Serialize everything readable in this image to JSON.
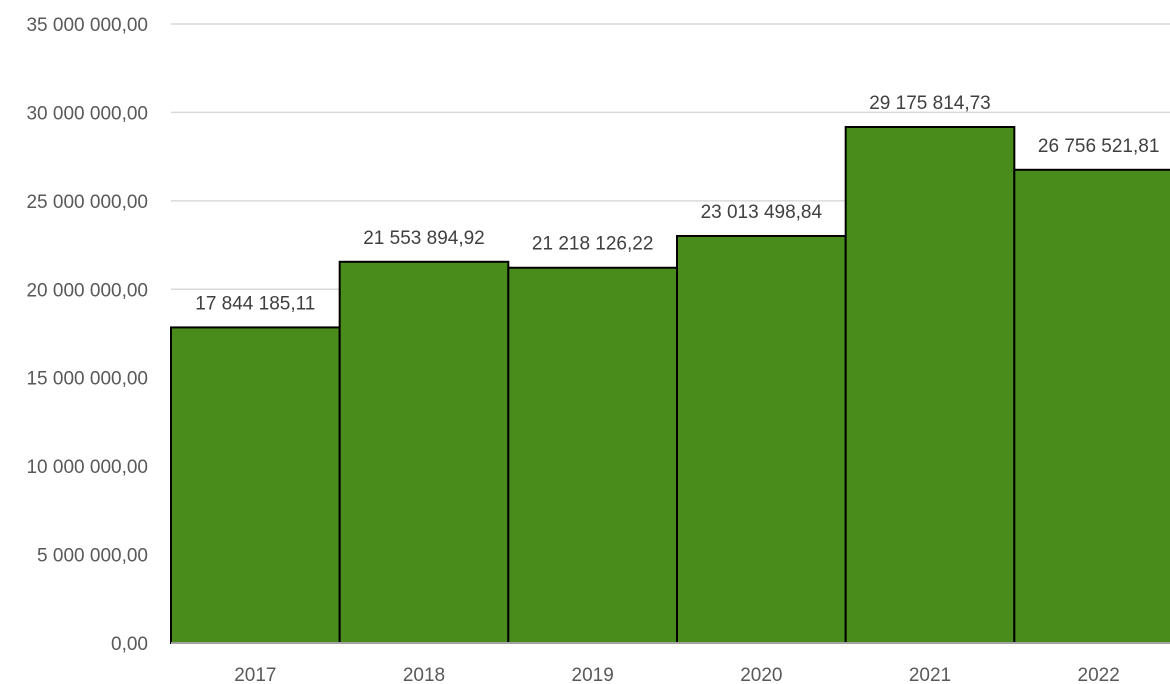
{
  "colors": {
    "bar_fill": "#4a8c1c",
    "bar_stroke": "#000000",
    "grid": "#d9d9d9",
    "text": "#595959"
  },
  "chart_data": {
    "type": "bar",
    "categories": [
      "2017",
      "2018",
      "2019",
      "2020",
      "2021",
      "2022"
    ],
    "values": [
      17844185.11,
      21553894.92,
      21218126.22,
      23013498.84,
      29175814.73,
      26756521.81
    ],
    "data_labels": [
      "17 844 185,11",
      "21 553 894,92",
      "21 218 126,22",
      "23 013 498,84",
      "29 175 814,73",
      "26 756 521,81"
    ],
    "ylim": [
      0,
      35000000
    ],
    "yticks": [
      0,
      5000000,
      10000000,
      15000000,
      20000000,
      25000000,
      30000000,
      35000000
    ],
    "ytick_labels": [
      "0,00",
      "5 000 000,00",
      "10 000 000,00",
      "15 000 000,00",
      "20 000 000,00",
      "25 000 000,00",
      "30 000 000,00",
      "35 000 000,00"
    ],
    "grid": true,
    "legend": "none",
    "title": "",
    "xlabel": "",
    "ylabel": ""
  }
}
